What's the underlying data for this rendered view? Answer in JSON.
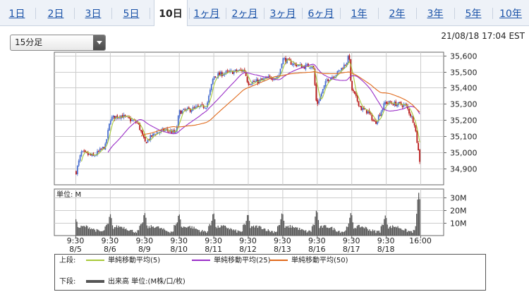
{
  "tabs": [
    {
      "label": "1日",
      "active": false
    },
    {
      "label": "2日",
      "active": false
    },
    {
      "label": "3日",
      "active": false
    },
    {
      "label": "5日",
      "active": false
    },
    {
      "label": "10日",
      "active": true
    },
    {
      "label": "1ヶ月",
      "active": false
    },
    {
      "label": "2ヶ月",
      "active": false
    },
    {
      "label": "3ヶ月",
      "active": false
    },
    {
      "label": "6ヶ月",
      "active": false
    },
    {
      "label": "1年",
      "active": false
    },
    {
      "label": "2年",
      "active": false
    },
    {
      "label": "3年",
      "active": false
    },
    {
      "label": "5年",
      "active": false
    },
    {
      "label": "10年",
      "active": false
    }
  ],
  "period_select": {
    "value": "15分足"
  },
  "timestamp": "21/08/18 17:04 EST",
  "legend": {
    "upper_label": "上段:",
    "lower_label": "下段:",
    "ma5": "単純移動平均(5)",
    "ma25": "単純移動平均(25)",
    "ma50": "単純移動平均(50)",
    "volume": "出来高 単位:(M株/口/枚)"
  },
  "colors": {
    "ma5": "#a8c93a",
    "ma25": "#9b30c8",
    "ma50": "#e06a1c",
    "candle_up": "#4a6fd0",
    "candle_down": "#b81818",
    "volume": "#555555",
    "grid": "#cccccc"
  },
  "chart_data": {
    "type": "candlestick",
    "price_axis": {
      "ticks": [
        34900,
        35000,
        35100,
        35200,
        35300,
        35400,
        35500,
        35600
      ],
      "ylim": [
        34800,
        35620
      ]
    },
    "volume_axis": {
      "unit_label": "単位: M",
      "ticks": [
        "10M",
        "20M",
        "30M"
      ],
      "tick_values": [
        10,
        20,
        30
      ],
      "ylim": [
        0,
        37
      ]
    },
    "x_ticks": [
      {
        "time": "9:30",
        "date": "8/5"
      },
      {
        "time": "9:30",
        "date": "8/6"
      },
      {
        "time": "9:30",
        "date": "8/9"
      },
      {
        "time": "9:30",
        "date": "8/10"
      },
      {
        "time": "9:30",
        "date": "8/11"
      },
      {
        "time": "9:30",
        "date": "8/12"
      },
      {
        "time": "9:30",
        "date": "8/13"
      },
      {
        "time": "9:30",
        "date": "8/16"
      },
      {
        "time": "9:30",
        "date": "8/17"
      },
      {
        "time": "9:30",
        "date": "8/18"
      },
      {
        "time": "16:00",
        "date": ""
      }
    ],
    "price_path": [
      [
        0,
        34880
      ],
      [
        0.15,
        35000
      ],
      [
        0.5,
        34975
      ],
      [
        0.85,
        35040
      ],
      [
        1.0,
        35210
      ],
      [
        1.3,
        35230
      ],
      [
        1.6,
        35200
      ],
      [
        1.8,
        35180
      ],
      [
        2.0,
        35060
      ],
      [
        2.3,
        35120
      ],
      [
        2.6,
        35140
      ],
      [
        2.9,
        35120
      ],
      [
        3.0,
        35250
      ],
      [
        3.4,
        35270
      ],
      [
        3.8,
        35290
      ],
      [
        4.0,
        35470
      ],
      [
        4.3,
        35490
      ],
      [
        4.6,
        35500
      ],
      [
        4.9,
        35510
      ],
      [
        5.0,
        35430
      ],
      [
        5.3,
        35440
      ],
      [
        5.6,
        35460
      ],
      [
        5.9,
        35470
      ],
      [
        6.0,
        35580
      ],
      [
        6.3,
        35550
      ],
      [
        6.6,
        35530
      ],
      [
        6.9,
        35540
      ],
      [
        7.0,
        35290
      ],
      [
        7.3,
        35450
      ],
      [
        7.6,
        35490
      ],
      [
        7.85,
        35550
      ],
      [
        7.95,
        35600
      ],
      [
        8.0,
        35400
      ],
      [
        8.3,
        35270
      ],
      [
        8.5,
        35250
      ],
      [
        8.7,
        35180
      ],
      [
        9.0,
        35310
      ],
      [
        9.3,
        35300
      ],
      [
        9.6,
        35290
      ],
      [
        9.85,
        35180
      ],
      [
        10.0,
        34950
      ]
    ],
    "volume_profile": {
      "session_open_peak": [
        13,
        17,
        18,
        17,
        18,
        17,
        18,
        20,
        18,
        16,
        34
      ],
      "session_open_peak_days": [
        0,
        1,
        2,
        3,
        4,
        5,
        6,
        7,
        8,
        9,
        9.97
      ]
    }
  }
}
